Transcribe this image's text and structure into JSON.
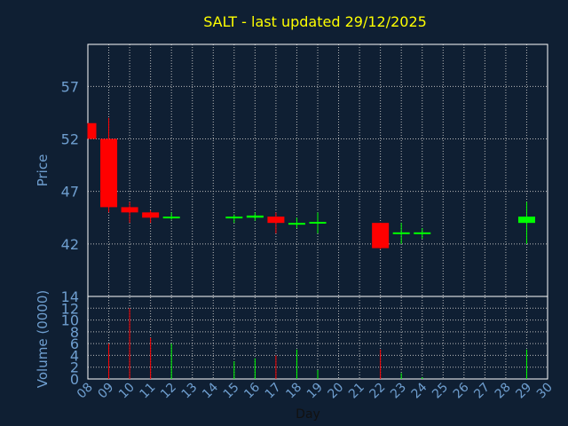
{
  "chart_data": {
    "type": "candlestick",
    "title": "SALT - last updated 29/12/2025",
    "xlabel": "Day",
    "colors": {
      "background": "#0f1f33",
      "title": "#ffff00",
      "axis_text": "#6f9fd0",
      "frame": "#ffffff",
      "grid": "#bbbbbb",
      "up": "#00ff00",
      "down": "#ff0000"
    },
    "x_ticks": [
      "08",
      "09",
      "10",
      "11",
      "12",
      "13",
      "14",
      "15",
      "16",
      "17",
      "18",
      "19",
      "20",
      "21",
      "22",
      "23",
      "24",
      "25",
      "26",
      "27",
      "28",
      "29",
      "30"
    ],
    "price_panel": {
      "ylabel": "Price",
      "ylim": [
        37,
        61
      ],
      "yticks": [
        42,
        47,
        52,
        57
      ],
      "grid": true
    },
    "volume_panel": {
      "ylabel": "Volume (0000)",
      "ylim": [
        0,
        14
      ],
      "yticks": [
        0,
        2,
        4,
        6,
        8,
        10,
        12,
        14
      ],
      "grid": true
    },
    "candles": [
      {
        "day": 8,
        "open": 53.5,
        "high": 53.5,
        "low": 52.0,
        "close": 52.0,
        "volume": 0
      },
      {
        "day": 9,
        "open": 52.0,
        "high": 54.0,
        "low": 45.0,
        "close": 45.5,
        "volume": 6
      },
      {
        "day": 10,
        "open": 45.5,
        "high": 46.0,
        "low": 44.0,
        "close": 45.0,
        "volume": 12
      },
      {
        "day": 11,
        "open": 45.0,
        "high": 45.2,
        "low": 44.0,
        "close": 44.5,
        "volume": 7
      },
      {
        "day": 12,
        "open": 44.5,
        "high": 45.0,
        "low": 44.3,
        "close": 44.6,
        "volume": 6
      },
      {
        "day": 15,
        "open": 44.5,
        "high": 44.8,
        "low": 44.0,
        "close": 44.6,
        "volume": 3
      },
      {
        "day": 16,
        "open": 44.5,
        "high": 45.0,
        "low": 44.2,
        "close": 44.7,
        "volume": 3.5
      },
      {
        "day": 17,
        "open": 44.6,
        "high": 45.0,
        "low": 43.0,
        "close": 44.0,
        "volume": 4
      },
      {
        "day": 18,
        "open": 43.9,
        "high": 44.5,
        "low": 43.5,
        "close": 44.0,
        "volume": 5
      },
      {
        "day": 19,
        "open": 44.0,
        "high": 45.0,
        "low": 43.0,
        "close": 44.1,
        "volume": 1.5
      },
      {
        "day": 22,
        "open": 44.0,
        "high": 44.0,
        "low": 41.5,
        "close": 41.6,
        "volume": 5
      },
      {
        "day": 23,
        "open": 43.0,
        "high": 44.0,
        "low": 42.0,
        "close": 43.1,
        "volume": 1
      },
      {
        "day": 24,
        "open": 43.0,
        "high": 43.5,
        "low": 42.5,
        "close": 43.1,
        "volume": 0.3
      },
      {
        "day": 29,
        "open": 44.0,
        "high": 46.0,
        "low": 42.0,
        "close": 44.6,
        "volume": 5
      }
    ]
  }
}
